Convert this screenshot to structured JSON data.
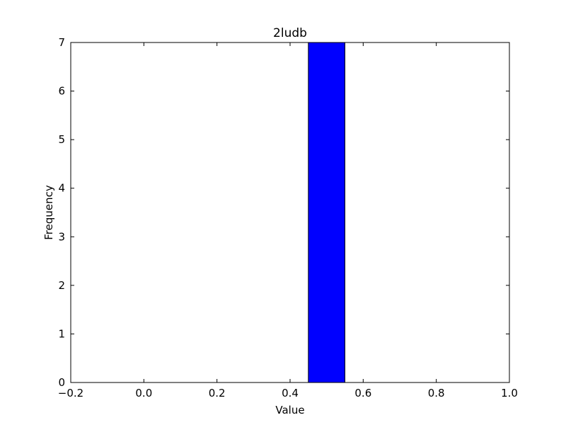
{
  "chart_data": {
    "type": "bar",
    "title": "2ludb",
    "xlabel": "Value",
    "ylabel": "Frequency",
    "xlim": [
      -0.2,
      1.0
    ],
    "ylim": [
      0,
      7
    ],
    "xticks": [
      -0.2,
      0.0,
      0.2,
      0.4,
      0.6,
      0.8,
      1.0
    ],
    "xtick_labels": [
      "−0.2",
      "0.0",
      "0.2",
      "0.4",
      "0.6",
      "0.8",
      "1.0"
    ],
    "yticks": [
      0,
      1,
      2,
      3,
      4,
      5,
      6,
      7
    ],
    "ytick_labels": [
      "0",
      "1",
      "2",
      "3",
      "4",
      "5",
      "6",
      "7"
    ],
    "bins": [
      {
        "x0": -0.05,
        "x1": 0.05,
        "value": 0
      },
      {
        "x0": 0.05,
        "x1": 0.15,
        "value": 0
      },
      {
        "x0": 0.15,
        "x1": 0.25,
        "value": 0
      },
      {
        "x0": 0.25,
        "x1": 0.35,
        "value": 0
      },
      {
        "x0": 0.35,
        "x1": 0.45,
        "value": 0
      },
      {
        "x0": 0.45,
        "x1": 0.55,
        "value": 7
      },
      {
        "x0": 0.55,
        "x1": 0.65,
        "value": 0
      },
      {
        "x0": 0.65,
        "x1": 0.75,
        "value": 0
      },
      {
        "x0": 0.75,
        "x1": 0.85,
        "value": 0
      },
      {
        "x0": 0.85,
        "x1": 0.95,
        "value": 0
      }
    ],
    "bar_color": "#0000ff",
    "grid": false
  }
}
